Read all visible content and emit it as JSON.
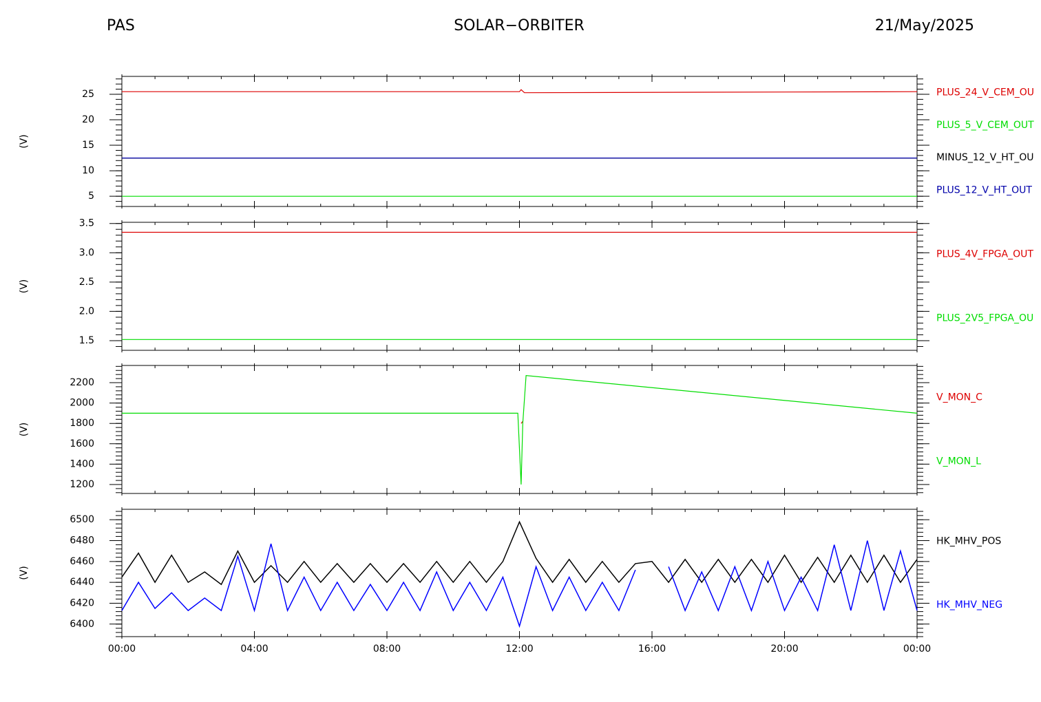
{
  "header": {
    "left": "PAS",
    "title": "SOLAR−ORBITER",
    "date": "21/May/2025"
  },
  "chart_data": [
    {
      "type": "line",
      "ylabel": "(V)",
      "x": [
        0,
        12,
        12.05,
        12.15,
        24
      ],
      "xlim": [
        0,
        24
      ],
      "xticks": [
        0,
        4,
        8,
        12,
        16,
        20,
        24
      ],
      "ylim": [
        3,
        28.5
      ],
      "yticks": [
        5,
        10,
        15,
        20,
        25
      ],
      "series": [
        {
          "name": "PLUS_24_V_CEM_OU",
          "color": "#dd0000",
          "values": [
            25.5,
            25.5,
            25.9,
            25.3,
            25.5
          ]
        },
        {
          "name": "PLUS_5_V_CEM_OUT",
          "color": "#00dd00",
          "values": [
            5,
            5,
            5,
            5,
            5
          ]
        },
        {
          "name": "MINUS_12_V_HT_OU",
          "color": "#000000",
          "values": [
            12.5,
            12.5,
            12.5,
            12.5,
            12.5
          ]
        },
        {
          "name": "PLUS_12_V_HT_OUT",
          "color": "#0000aa",
          "values": [
            12.5,
            12.5,
            12.5,
            12.5,
            12.5
          ]
        }
      ]
    },
    {
      "type": "line",
      "ylabel": "(V)",
      "x": [
        0,
        24
      ],
      "xlim": [
        0,
        24
      ],
      "xticks": [
        0,
        4,
        8,
        12,
        16,
        20,
        24
      ],
      "ylim": [
        1.335,
        3.52
      ],
      "yticks": [
        {
          "value": 1.5,
          "label": "1.5"
        },
        {
          "value": 2,
          "label": "2.0"
        },
        {
          "value": 2.5,
          "label": "2.5"
        },
        {
          "value": 3,
          "label": "3.0"
        },
        {
          "value": 3.5,
          "label": "3.5"
        }
      ],
      "series": [
        {
          "name": "PLUS_4V_FPGA_OUT",
          "color": "#dd0000",
          "values": [
            3.35,
            3.35
          ]
        },
        {
          "name": "PLUS_2V5_FPGA_OU",
          "color": "#00dd00",
          "values": [
            1.52,
            1.52
          ]
        }
      ]
    },
    {
      "type": "line",
      "ylabel": "(V)",
      "x": [
        0,
        11.95,
        12.05,
        12.1,
        12.2,
        24
      ],
      "xlim": [
        0,
        24
      ],
      "xticks": [
        0,
        4,
        8,
        12,
        16,
        20,
        24
      ],
      "ylim": [
        1112,
        2369
      ],
      "yticks": [
        1200,
        1400,
        1600,
        1800,
        2000,
        2200
      ],
      "series": [
        {
          "name": "V_MON_C",
          "color": "#dd0000",
          "values": [
            null,
            null,
            1800,
            1820,
            null,
            null
          ]
        },
        {
          "name": "V_MON_L",
          "color": "#00dd00",
          "values": [
            1900,
            1900,
            1200,
            1800,
            2270,
            1900
          ]
        }
      ]
    },
    {
      "type": "line",
      "ylabel": "(V)",
      "x": [
        0,
        0.5,
        1,
        1.5,
        2,
        2.5,
        3,
        3.5,
        4,
        4.5,
        5,
        5.5,
        6,
        6.5,
        7,
        7.5,
        8,
        8.5,
        9,
        9.5,
        10,
        10.5,
        11,
        11.5,
        12,
        12.5,
        13,
        13.5,
        14,
        14.5,
        15,
        15.5,
        16,
        16.5,
        17,
        17.5,
        18,
        18.5,
        19,
        19.5,
        20,
        20.5,
        21,
        21.5,
        22,
        22.5,
        23,
        23.5,
        24
      ],
      "xlim": [
        0,
        24
      ],
      "xticks": [
        {
          "value": 0,
          "label": "00:00"
        },
        {
          "value": 4,
          "label": "04:00"
        },
        {
          "value": 8,
          "label": "08:00"
        },
        {
          "value": 12,
          "label": "12:00"
        },
        {
          "value": 16,
          "label": "16:00"
        },
        {
          "value": 20,
          "label": "20:00"
        },
        {
          "value": 24,
          "label": "00:00"
        }
      ],
      "ylim": [
        6388,
        6510
      ],
      "yticks": [
        6400,
        6420,
        6440,
        6460,
        6480,
        6500
      ],
      "series": [
        {
          "name": "HK_MHV_POS",
          "color": "#000000",
          "values": [
            6445,
            6468,
            6440,
            6466,
            6440,
            6450,
            6438,
            6470,
            6440,
            6456,
            6440,
            6460,
            6440,
            6458,
            6440,
            6458,
            6440,
            6458,
            6440,
            6460,
            6440,
            6460,
            6440,
            6460,
            6498,
            6463,
            6440,
            6462,
            6440,
            6460,
            6440,
            6458,
            6460,
            6440,
            6462,
            6440,
            6462,
            6440,
            6462,
            6440,
            6466,
            6440,
            6464,
            6440,
            6466,
            6440,
            6466,
            6440,
            6462
          ]
        },
        {
          "name": "HK_MHV_NEG",
          "color": "#0000ff",
          "values": [
            6413,
            6440,
            6415,
            6430,
            6413,
            6425,
            6413,
            6465,
            6413,
            6477,
            6413,
            6445,
            6413,
            6440,
            6413,
            6438,
            6413,
            6440,
            6413,
            6450,
            6413,
            6440,
            6413,
            6445,
            6398,
            6455,
            6413,
            6445,
            6413,
            6440,
            6413,
            6452,
            null,
            6455,
            6413,
            6450,
            6413,
            6455,
            6413,
            6460,
            6413,
            6445,
            6413,
            6476,
            6413,
            6480,
            6413,
            6470,
            6413
          ]
        }
      ]
    }
  ]
}
